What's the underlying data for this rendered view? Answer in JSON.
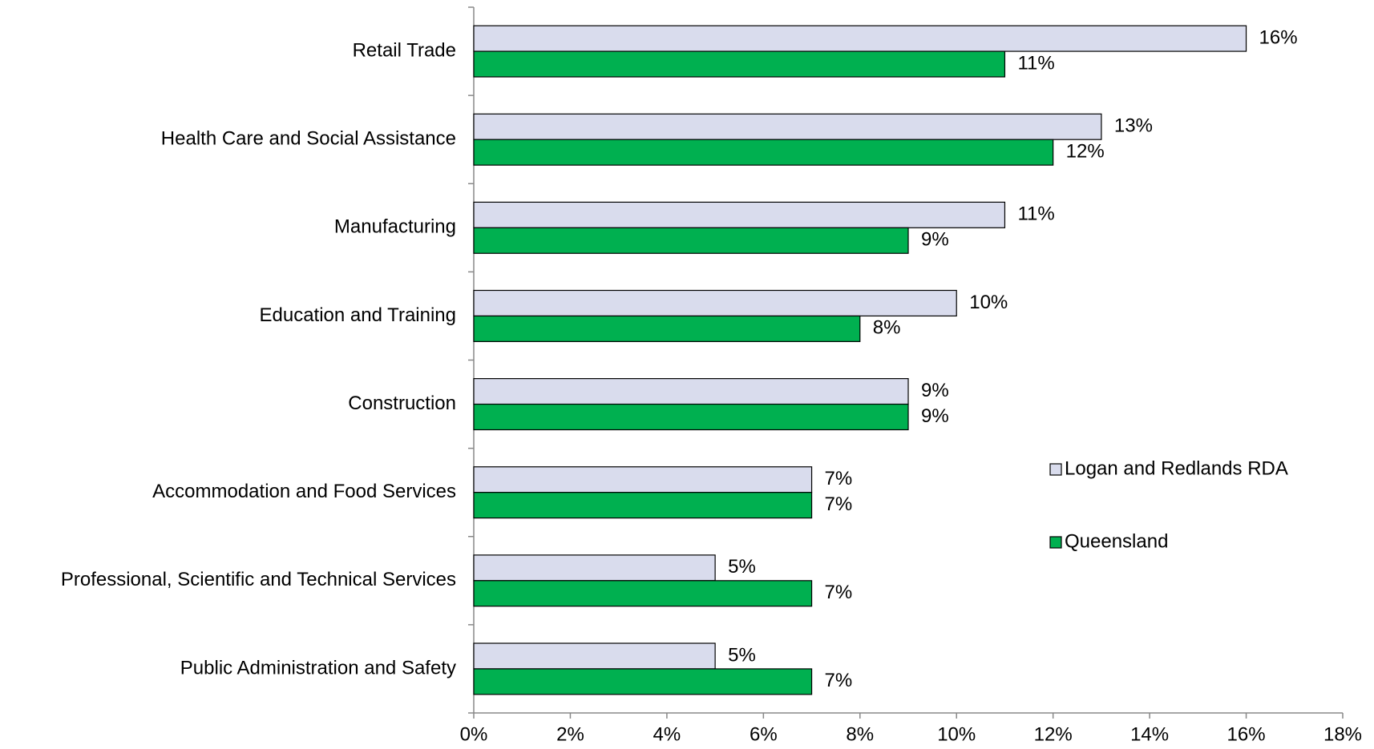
{
  "chart_data": {
    "type": "bar",
    "orientation": "horizontal",
    "categories": [
      "Retail Trade",
      "Health Care and Social Assistance",
      "Manufacturing",
      "Education and Training",
      "Construction",
      "Accommodation and Food Services",
      "Professional, Scientific and Technical Services",
      "Public Administration and Safety"
    ],
    "series": [
      {
        "name": "Logan and Redlands RDA",
        "color": "#d9dced",
        "values": [
          16,
          13,
          11,
          10,
          9,
          7,
          5,
          5
        ],
        "value_labels": [
          "16%",
          "13%",
          "11%",
          "10%",
          "9%",
          "7%",
          "5%",
          "5%"
        ]
      },
      {
        "name": "Queensland",
        "color": "#00b050",
        "values": [
          11,
          12,
          9,
          8,
          9,
          7,
          7,
          7
        ],
        "value_labels": [
          "11%",
          "12%",
          "9%",
          "8%",
          "9%",
          "7%",
          "7%",
          "7%"
        ]
      }
    ],
    "xlim": [
      0,
      18
    ],
    "xticks": [
      {
        "value": 0,
        "label": "0%"
      },
      {
        "value": 2,
        "label": "2%"
      },
      {
        "value": 4,
        "label": "4%"
      },
      {
        "value": 6,
        "label": "6%"
      },
      {
        "value": 8,
        "label": "8%"
      },
      {
        "value": 10,
        "label": "10%"
      },
      {
        "value": 12,
        "label": "12%"
      },
      {
        "value": 14,
        "label": "14%"
      },
      {
        "value": 16,
        "label": "16%"
      },
      {
        "value": 18,
        "label": "18%"
      }
    ],
    "grid": false,
    "legend": "right"
  }
}
